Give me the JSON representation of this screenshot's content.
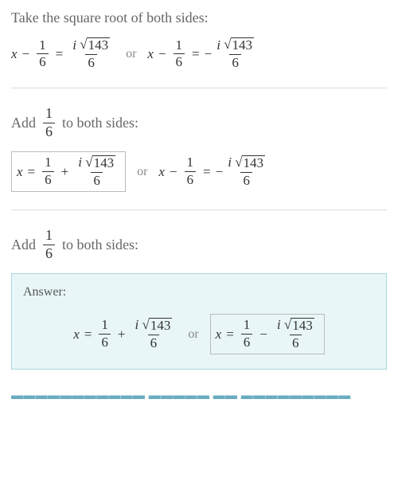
{
  "step1": {
    "instruction": "Take the square root of both sides:",
    "eq": {
      "lhs_var": "x",
      "lhs_frac_num": "1",
      "lhs_frac_den": "6",
      "rhs_num_i": "i",
      "rhs_num_rad": "143",
      "rhs_den": "6",
      "or": "or",
      "rhs2_neg": "−"
    }
  },
  "step2": {
    "instruction_pre": "Add",
    "instruction_frac_num": "1",
    "instruction_frac_den": "6",
    "instruction_post": "to both sides:",
    "eq": {
      "lhs_var": "x",
      "eq_sign": "=",
      "frac1_num": "1",
      "frac1_den": "6",
      "plus": "+",
      "rhs_num_i": "i",
      "rhs_num_rad": "143",
      "rhs_den": "6",
      "or": "or",
      "minus": "−",
      "neg": "−"
    }
  },
  "step3": {
    "instruction_pre": "Add",
    "instruction_frac_num": "1",
    "instruction_frac_den": "6",
    "instruction_post": "to both sides:"
  },
  "answer": {
    "label": "Answer:",
    "var": "x",
    "eq": "=",
    "frac1_num": "1",
    "frac1_den": "6",
    "plus": "+",
    "i": "i",
    "rad": "143",
    "den": "6",
    "or": "or",
    "minus": "−"
  },
  "bottom": "▬▬▬▬▬▬▬▬▬▬▬ ▬▬▬▬▬ ▬▬ ▬▬▬▬▬▬▬▬▬",
  "colors": {
    "text": "#555555",
    "math": "#333333",
    "divider": "#dddddd",
    "answer_bg": "#e8f6f7",
    "answer_border": "#a8d8dd",
    "link": "#2a8aa8"
  }
}
